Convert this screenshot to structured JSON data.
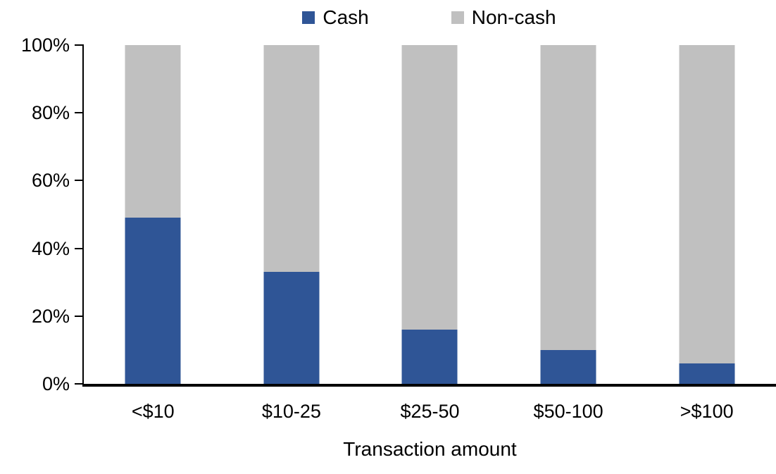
{
  "chart_data": {
    "type": "bar",
    "variant": "stacked-100-percent",
    "title": "",
    "xlabel": "Transaction amount",
    "ylabel": "",
    "categories": [
      "<$10",
      "$10-25",
      "$25-50",
      "$50-100",
      ">$100"
    ],
    "series": [
      {
        "name": "Cash",
        "color": "#2F5596",
        "values": [
          49,
          33,
          16,
          10,
          6
        ]
      },
      {
        "name": "Non-cash",
        "color": "#C0C0C0",
        "values": [
          51,
          67,
          84,
          90,
          94
        ]
      }
    ],
    "ylim": [
      0,
      100
    ],
    "ytick_step": 20,
    "ytick_labels": [
      "0%",
      "20%",
      "40%",
      "60%",
      "80%",
      "100%"
    ],
    "legend_position": "top-center",
    "grid": false,
    "axis_color": "#000000",
    "text_color": "#000000",
    "background": "#FFFFFF"
  }
}
